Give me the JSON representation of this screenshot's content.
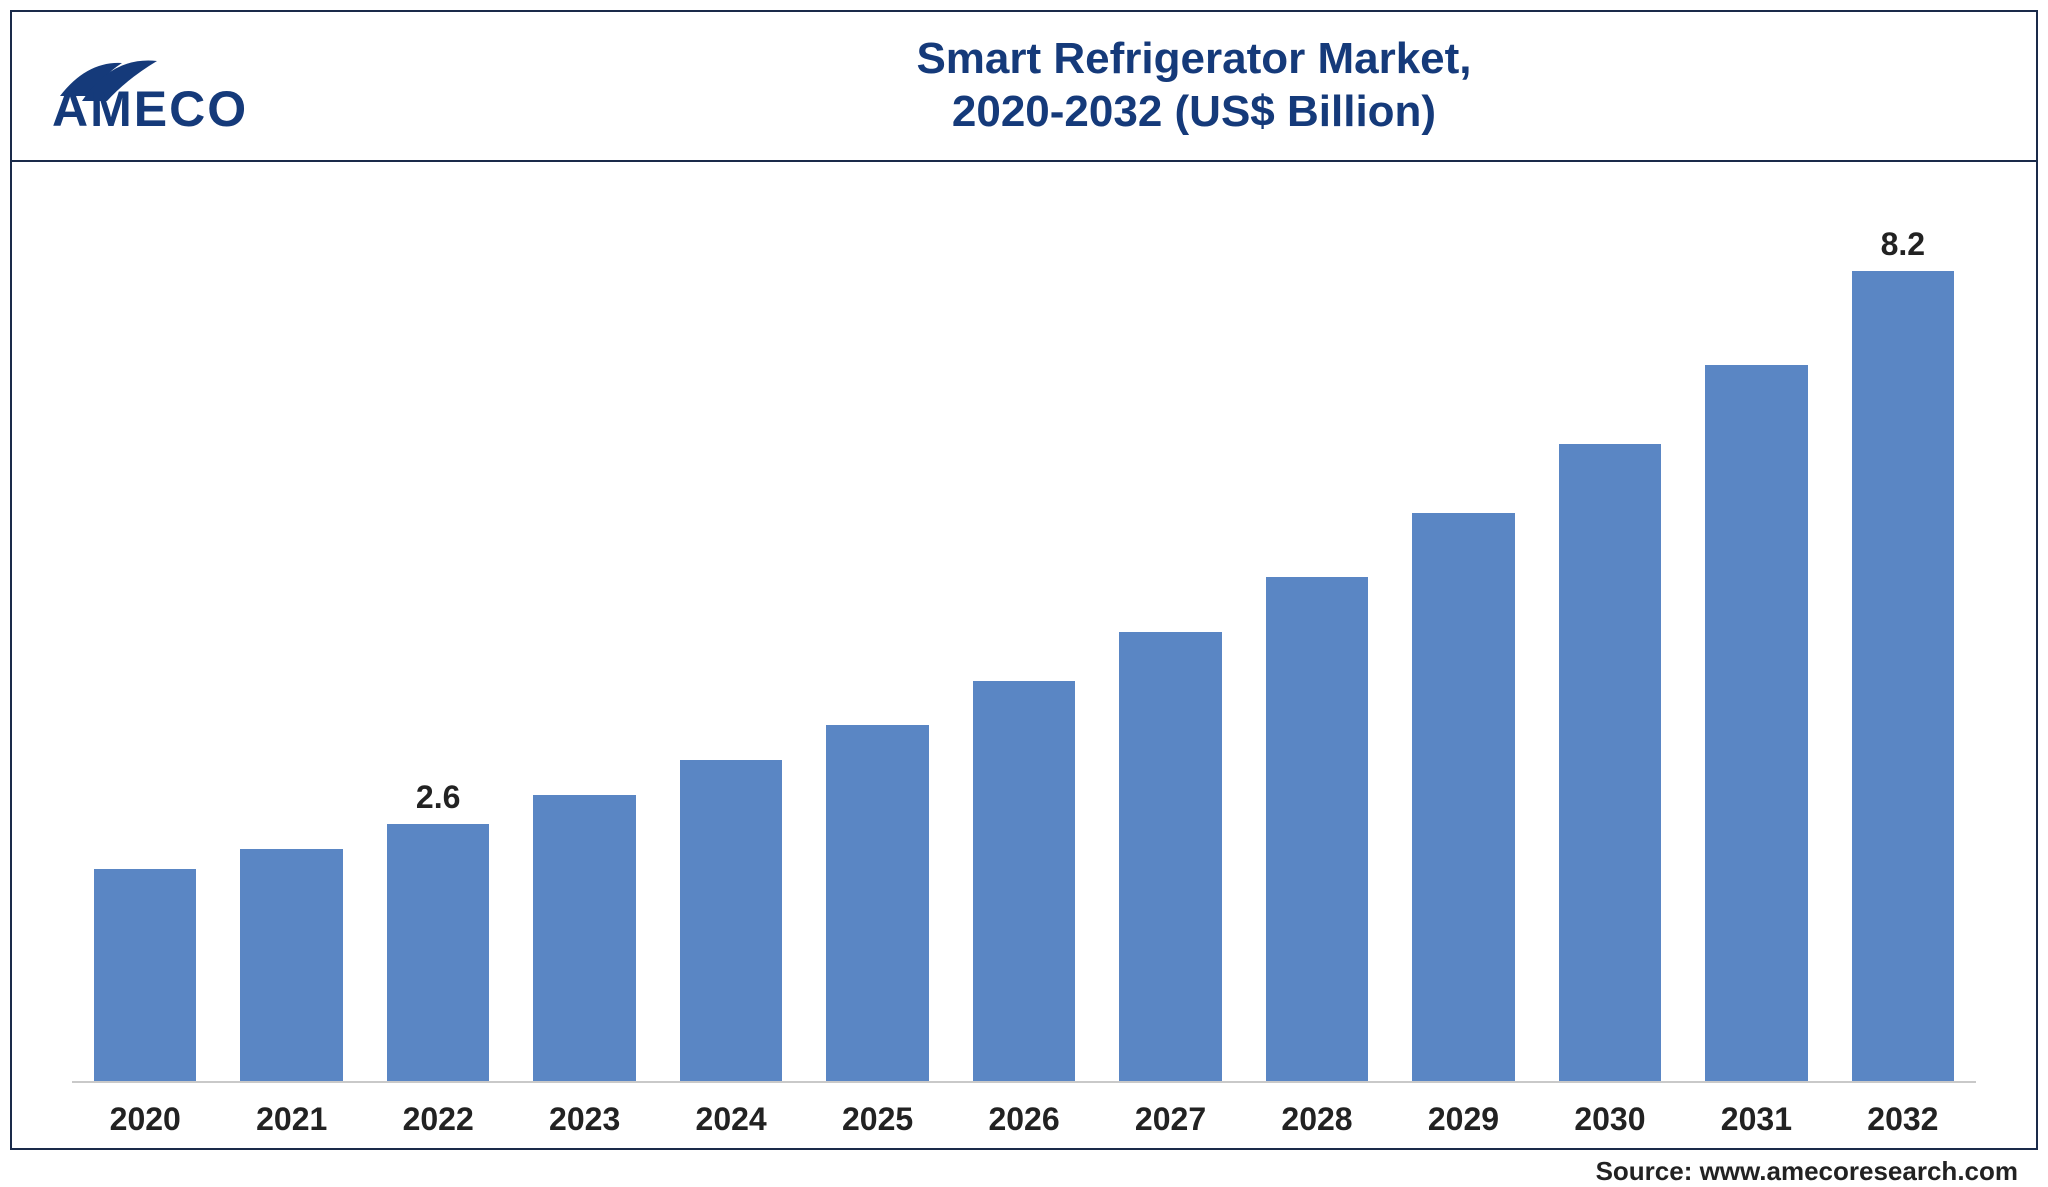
{
  "brand": {
    "name": "AMECO",
    "logo_color": "#153a7a"
  },
  "title_line1": "Smart Refrigerator Market,",
  "title_line2": "2020-2032 (US$ Billion)",
  "chart": {
    "type": "bar",
    "categories": [
      "2020",
      "2021",
      "2022",
      "2023",
      "2024",
      "2025",
      "2026",
      "2027",
      "2028",
      "2029",
      "2030",
      "2031",
      "2032"
    ],
    "values": [
      2.15,
      2.35,
      2.6,
      2.9,
      3.25,
      3.6,
      4.05,
      4.55,
      5.1,
      5.75,
      6.45,
      7.25,
      8.2
    ],
    "value_labels": {
      "2": "2.6",
      "12": "8.2"
    },
    "bar_color": "#5a86c4",
    "ylim": [
      0,
      9
    ],
    "bar_width": 0.7,
    "title_fontsize": 44,
    "label_fontsize": 32,
    "value_label_fontsize": 32,
    "background_color": "#ffffff",
    "axis_color": "#c9c9c9",
    "text_color": "#222222"
  },
  "source_text": "Source: www.amecoresearch.com"
}
